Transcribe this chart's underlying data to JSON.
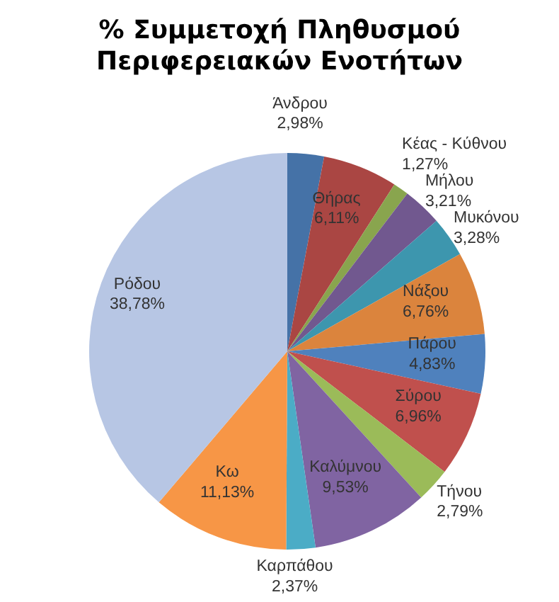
{
  "chart_data": {
    "type": "pie",
    "title": "% Συμμετοχή Πληθυσμού Περιφερειακών Ενοτήτων",
    "categories": [
      "Άνδρου",
      "Θήρας",
      "Κέας - Κύθνου",
      "Μήλου",
      "Μυκόνου",
      "Νάξου",
      "Πάρου",
      "Σύρου",
      "Τήνου",
      "Καλύμνου",
      "Καρπάθου",
      "Κω",
      "Ρόδου"
    ],
    "values": [
      2.98,
      6.11,
      1.27,
      3.21,
      3.28,
      6.76,
      4.83,
      6.96,
      2.79,
      9.53,
      2.37,
      11.13,
      38.78
    ],
    "value_labels": [
      "2,98%",
      "6,11%",
      "1,27%",
      "3,21%",
      "3,28%",
      "6,76%",
      "4,83%",
      "6,96%",
      "2,79%",
      "9,53%",
      "2,37%",
      "11,13%",
      "38,78%"
    ],
    "colors": [
      "#4572a7",
      "#aa4643",
      "#89a54e",
      "#71588f",
      "#3d96ae",
      "#db843d",
      "#4f81bd",
      "#c0504d",
      "#9bbb59",
      "#8064a2",
      "#4bacc6",
      "#f79646",
      "#b7c6e4"
    ]
  }
}
